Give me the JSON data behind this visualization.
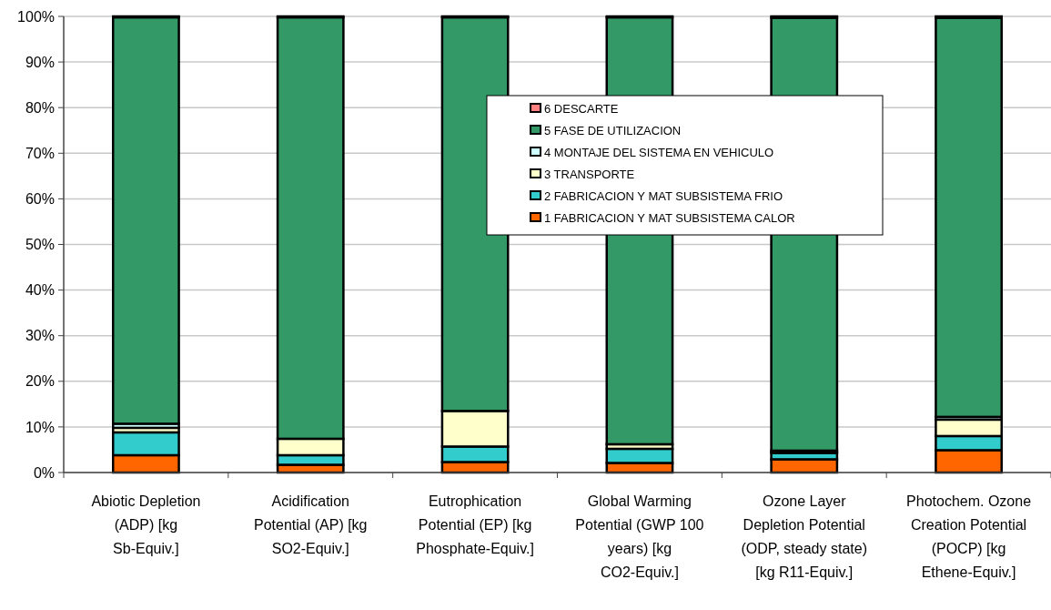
{
  "chart_data": {
    "type": "bar",
    "stacked": true,
    "categories": [
      "Abiotic Depletion (ADP) [kg Sb-Equiv.]",
      "Acidification Potential (AP) [kg SO2-Equiv.]",
      "Eutrophication Potential (EP) [kg Phosphate-Equiv.]",
      "Global Warming Potential (GWP 100 years) [kg CO2-Equiv.]",
      "Ozone Layer Depletion Potential (ODP, steady state) [kg R11-Equiv.]",
      "Photochem. Ozone Creation Potential (POCP) [kg Ethene-Equiv.]"
    ],
    "series": [
      {
        "name": "1 FABRICACION Y MAT SUBSISTEMA CALOR",
        "color": "#ff6600",
        "values": [
          3.8,
          1.7,
          2.3,
          2.1,
          2.9,
          4.9
        ]
      },
      {
        "name": "2 FABRICACION Y MAT SUBSISTEMA FRIO",
        "color": "#33cccc",
        "values": [
          5.0,
          2.1,
          3.4,
          3.1,
          1.4,
          3.1
        ]
      },
      {
        "name": "3 TRANSPORTE",
        "color": "#ffffcc",
        "values": [
          1.0,
          3.6,
          7.8,
          1.0,
          null,
          3.6
        ]
      },
      {
        "name": "4 MONTAJE DEL SISTEMA EN VEHICULO",
        "color": "#ccffff",
        "values": [
          0.9,
          null,
          null,
          null,
          0.5,
          0.6
        ]
      },
      {
        "name": "5 FASE DE UTILIZACION",
        "color": "#339966",
        "values": [
          89.1,
          92.4,
          86.3,
          93.6,
          94.9,
          87.5
        ]
      },
      {
        "name": "6 DESCARTE",
        "color": "#ff8080",
        "values": [
          0.2,
          0.2,
          0.2,
          0.2,
          0.3,
          0.3
        ]
      }
    ],
    "ylim": [
      0,
      100
    ],
    "yticks": [
      {
        "value": 0,
        "label": "0%"
      },
      {
        "value": 10,
        "label": "10%"
      },
      {
        "value": 20,
        "label": "20%"
      },
      {
        "value": 30,
        "label": "30%"
      },
      {
        "value": 40,
        "label": "40%"
      },
      {
        "value": 50,
        "label": "50%"
      },
      {
        "value": 60,
        "label": "60%"
      },
      {
        "value": 70,
        "label": "70%"
      },
      {
        "value": 80,
        "label": "80%"
      },
      {
        "value": 90,
        "label": "90%"
      },
      {
        "value": 100,
        "label": "100%"
      }
    ],
    "grid": "y",
    "legend": "top right"
  }
}
